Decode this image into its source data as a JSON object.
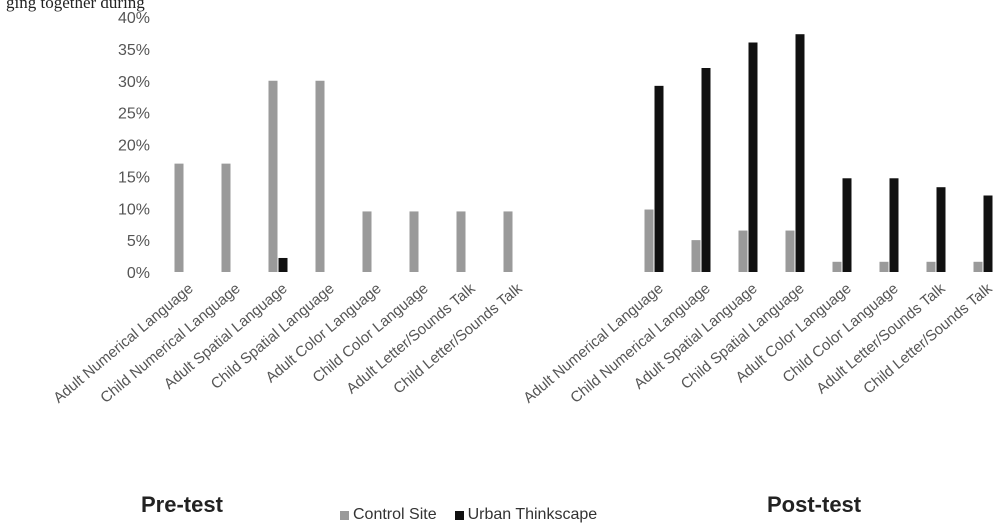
{
  "caption": "ging together during",
  "colors": {
    "control": "#9a9a9a",
    "urban": "#111111"
  },
  "chart_data": {
    "type": "bar",
    "title": "",
    "xlabel": "",
    "ylabel": "",
    "ylim": [
      0,
      40
    ],
    "yticks": [
      "0%",
      "5%",
      "10%",
      "15%",
      "20%",
      "25%",
      "30%",
      "35%",
      "40%"
    ],
    "groups": [
      {
        "name": "Pre-test",
        "categories": [
          "Adult Numerical Language",
          "Child Numerical Language",
          "Adult Spatial Language",
          "Child Spatial Language",
          "Adult Color Language",
          "Child Color Language",
          "Adult Letter/Sounds Talk",
          "Child Letter/Sounds Talk"
        ],
        "series": [
          {
            "name": "Control Site",
            "values": [
              17,
              17,
              30,
              30,
              9.5,
              9.5,
              9.5,
              9.5
            ]
          },
          {
            "name": "Urban Thinkscape",
            "values": [
              0,
              0,
              2.2,
              0,
              0,
              0,
              0,
              0
            ]
          }
        ]
      },
      {
        "name": "Post-test",
        "categories": [
          "Adult Numerical Language",
          "Child Numerical Language",
          "Adult Spatial Language",
          "Child Spatial Language",
          "Adult Color Language",
          "Child Color Language",
          "Adult Letter/Sounds Talk",
          "Child Letter/Sounds Talk"
        ],
        "series": [
          {
            "name": "Control Site",
            "values": [
              9.8,
              5,
              6.5,
              6.5,
              1.6,
              1.6,
              1.6,
              1.6
            ]
          },
          {
            "name": "Urban Thinkscape",
            "values": [
              29.2,
              32,
              36,
              37.3,
              14.7,
              14.7,
              13.3,
              12
            ]
          }
        ]
      }
    ],
    "legend": [
      "Control Site",
      "Urban Thinkscape"
    ],
    "legend_position": "bottom",
    "grid": false
  }
}
